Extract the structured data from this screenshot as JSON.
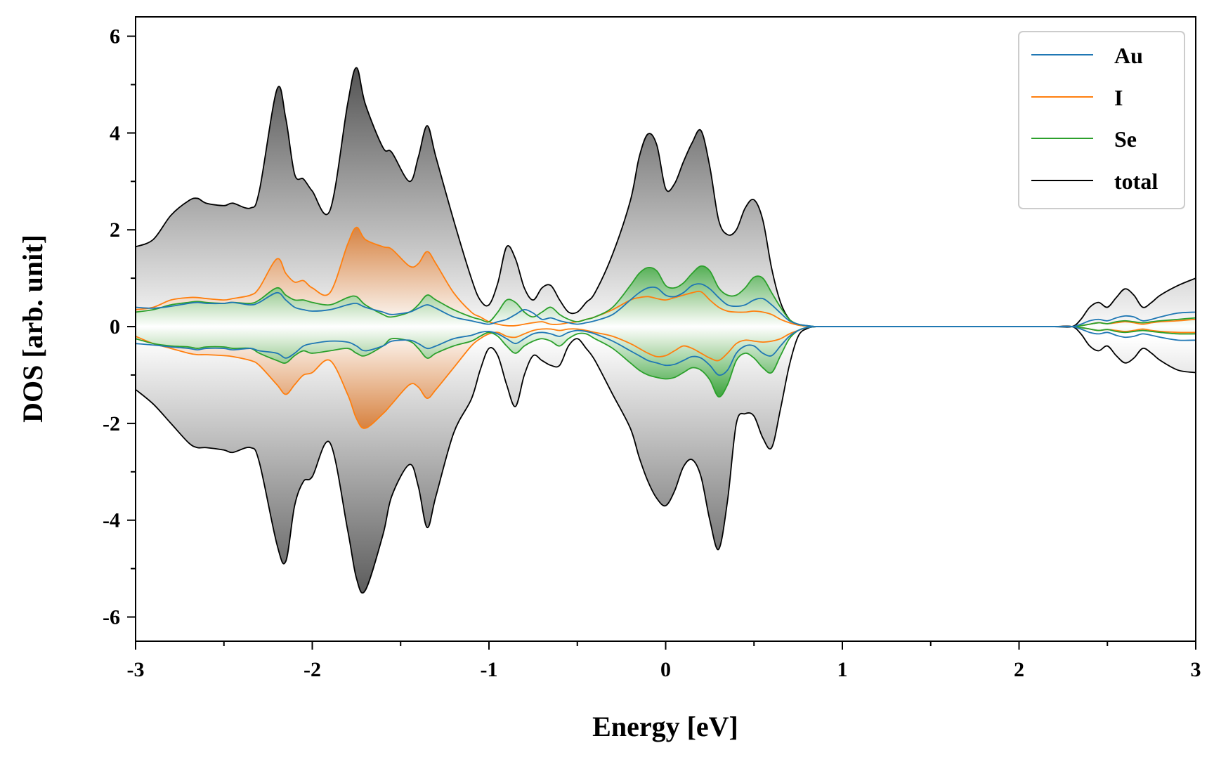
{
  "chart_data": {
    "type": "line",
    "title": "",
    "xlabel": "Energy [eV]",
    "ylabel": "DOS [arb. unit]",
    "xlim": [
      -3,
      3
    ],
    "ylim": [
      -6.5,
      6.4
    ],
    "x_ticks": [
      -3,
      -2,
      -1,
      0,
      1,
      2,
      3
    ],
    "x_tick_labels": [
      "-3",
      "-2",
      "-1",
      "0",
      "1",
      "2",
      "3"
    ],
    "y_ticks": [
      -6,
      -4,
      -2,
      0,
      2,
      4,
      6
    ],
    "y_tick_labels": [
      "-6",
      "-4",
      "-2",
      "0",
      "2",
      "4",
      "6"
    ],
    "legend_position": "top-right",
    "grid": false,
    "x": [
      -3.0,
      -2.9,
      -2.8,
      -2.7,
      -2.65,
      -2.6,
      -2.5,
      -2.45,
      -2.35,
      -2.3,
      -2.2,
      -2.15,
      -2.1,
      -2.05,
      -2.0,
      -1.9,
      -1.8,
      -1.75,
      -1.7,
      -1.6,
      -1.55,
      -1.45,
      -1.4,
      -1.35,
      -1.3,
      -1.2,
      -1.1,
      -1.05,
      -1.0,
      -0.95,
      -0.9,
      -0.85,
      -0.8,
      -0.75,
      -0.7,
      -0.65,
      -0.6,
      -0.55,
      -0.5,
      -0.45,
      -0.4,
      -0.3,
      -0.2,
      -0.15,
      -0.1,
      -0.05,
      0.0,
      0.05,
      0.1,
      0.15,
      0.2,
      0.25,
      0.3,
      0.35,
      0.4,
      0.45,
      0.5,
      0.55,
      0.6,
      0.65,
      0.7,
      0.75,
      0.8,
      0.85,
      0.9,
      1.0,
      1.5,
      2.0,
      2.2,
      2.3,
      2.35,
      2.4,
      2.45,
      2.5,
      2.55,
      2.6,
      2.65,
      2.7,
      2.75,
      2.8,
      2.9,
      3.0
    ],
    "series": [
      {
        "name": "Au",
        "color": "#1f77b4",
        "up": [
          0.4,
          0.38,
          0.42,
          0.48,
          0.5,
          0.48,
          0.48,
          0.5,
          0.45,
          0.5,
          0.7,
          0.55,
          0.4,
          0.35,
          0.32,
          0.35,
          0.45,
          0.48,
          0.4,
          0.3,
          0.25,
          0.3,
          0.38,
          0.45,
          0.38,
          0.2,
          0.12,
          0.08,
          0.05,
          0.1,
          0.15,
          0.25,
          0.35,
          0.28,
          0.15,
          0.18,
          0.12,
          0.08,
          0.05,
          0.08,
          0.12,
          0.25,
          0.55,
          0.7,
          0.8,
          0.8,
          0.65,
          0.62,
          0.7,
          0.85,
          0.88,
          0.78,
          0.6,
          0.45,
          0.42,
          0.45,
          0.55,
          0.58,
          0.45,
          0.28,
          0.12,
          0.05,
          0.02,
          0.0,
          0.0,
          0.0,
          0.0,
          0.0,
          0.0,
          0.0,
          0.05,
          0.12,
          0.15,
          0.12,
          0.18,
          0.22,
          0.2,
          0.12,
          0.15,
          0.2,
          0.28,
          0.3
        ],
        "down": [
          -0.35,
          -0.38,
          -0.42,
          -0.45,
          -0.48,
          -0.45,
          -0.45,
          -0.48,
          -0.45,
          -0.5,
          -0.55,
          -0.65,
          -0.55,
          -0.4,
          -0.35,
          -0.3,
          -0.32,
          -0.4,
          -0.5,
          -0.4,
          -0.3,
          -0.28,
          -0.35,
          -0.45,
          -0.4,
          -0.25,
          -0.18,
          -0.12,
          -0.1,
          -0.15,
          -0.25,
          -0.35,
          -0.25,
          -0.15,
          -0.12,
          -0.15,
          -0.2,
          -0.12,
          -0.08,
          -0.1,
          -0.15,
          -0.3,
          -0.5,
          -0.6,
          -0.7,
          -0.75,
          -0.8,
          -0.78,
          -0.7,
          -0.62,
          -0.65,
          -0.8,
          -1.0,
          -0.9,
          -0.55,
          -0.4,
          -0.4,
          -0.55,
          -0.6,
          -0.4,
          -0.2,
          -0.08,
          -0.02,
          0.0,
          0.0,
          0.0,
          0.0,
          0.0,
          0.0,
          0.0,
          -0.05,
          -0.12,
          -0.15,
          -0.12,
          -0.18,
          -0.22,
          -0.2,
          -0.15,
          -0.18,
          -0.22,
          -0.28,
          -0.28
        ]
      },
      {
        "name": "I",
        "color": "#ff7f0e",
        "up": [
          0.35,
          0.4,
          0.55,
          0.6,
          0.6,
          0.58,
          0.55,
          0.58,
          0.65,
          0.8,
          1.4,
          1.1,
          0.92,
          0.95,
          0.8,
          0.7,
          1.7,
          2.05,
          1.8,
          1.65,
          1.6,
          1.25,
          1.3,
          1.55,
          1.3,
          0.7,
          0.3,
          0.2,
          0.1,
          0.05,
          0.02,
          0.02,
          0.05,
          0.08,
          0.1,
          0.05,
          0.05,
          0.08,
          0.1,
          0.15,
          0.2,
          0.35,
          0.55,
          0.6,
          0.62,
          0.58,
          0.55,
          0.6,
          0.65,
          0.7,
          0.72,
          0.55,
          0.4,
          0.32,
          0.3,
          0.3,
          0.32,
          0.3,
          0.25,
          0.15,
          0.08,
          0.03,
          0.01,
          0.0,
          0.0,
          0.0,
          0.0,
          0.0,
          0.0,
          0.0,
          0.02,
          0.05,
          0.08,
          0.06,
          0.08,
          0.1,
          0.08,
          0.05,
          0.08,
          0.1,
          0.12,
          0.15
        ],
        "down": [
          -0.2,
          -0.35,
          -0.45,
          -0.55,
          -0.58,
          -0.58,
          -0.6,
          -0.62,
          -0.7,
          -0.8,
          -1.2,
          -1.4,
          -1.2,
          -1.0,
          -0.95,
          -0.7,
          -1.4,
          -1.9,
          -2.1,
          -1.8,
          -1.6,
          -1.2,
          -1.25,
          -1.48,
          -1.3,
          -0.85,
          -0.4,
          -0.25,
          -0.15,
          -0.12,
          -0.2,
          -0.22,
          -0.15,
          -0.08,
          -0.05,
          -0.05,
          -0.08,
          -0.05,
          -0.05,
          -0.08,
          -0.12,
          -0.2,
          -0.35,
          -0.45,
          -0.55,
          -0.62,
          -0.6,
          -0.5,
          -0.4,
          -0.45,
          -0.55,
          -0.65,
          -0.7,
          -0.55,
          -0.35,
          -0.28,
          -0.3,
          -0.32,
          -0.3,
          -0.25,
          -0.15,
          -0.08,
          -0.02,
          0.0,
          0.0,
          0.0,
          0.0,
          0.0,
          0.0,
          0.0,
          -0.02,
          -0.05,
          -0.08,
          -0.06,
          -0.08,
          -0.1,
          -0.08,
          -0.05,
          -0.08,
          -0.1,
          -0.12,
          -0.12
        ]
      },
      {
        "name": "Se",
        "color": "#2ca02c",
        "up": [
          0.3,
          0.35,
          0.45,
          0.5,
          0.52,
          0.5,
          0.48,
          0.5,
          0.48,
          0.55,
          0.8,
          0.65,
          0.55,
          0.55,
          0.5,
          0.45,
          0.6,
          0.62,
          0.45,
          0.25,
          0.2,
          0.3,
          0.45,
          0.65,
          0.55,
          0.35,
          0.2,
          0.15,
          0.1,
          0.3,
          0.55,
          0.5,
          0.3,
          0.2,
          0.3,
          0.4,
          0.25,
          0.15,
          0.1,
          0.15,
          0.2,
          0.4,
          0.85,
          1.1,
          1.22,
          1.15,
          0.85,
          0.8,
          0.9,
          1.1,
          1.25,
          1.15,
          0.8,
          0.65,
          0.65,
          0.8,
          1.02,
          1.0,
          0.7,
          0.4,
          0.15,
          0.05,
          0.02,
          0.0,
          0.0,
          0.0,
          0.0,
          0.0,
          0.0,
          0.0,
          0.02,
          0.05,
          0.08,
          0.06,
          0.1,
          0.12,
          0.1,
          0.08,
          0.1,
          0.12,
          0.15,
          0.18
        ],
        "down": [
          -0.25,
          -0.35,
          -0.4,
          -0.42,
          -0.45,
          -0.42,
          -0.42,
          -0.45,
          -0.45,
          -0.55,
          -0.7,
          -0.75,
          -0.6,
          -0.5,
          -0.55,
          -0.5,
          -0.45,
          -0.55,
          -0.6,
          -0.4,
          -0.25,
          -0.3,
          -0.45,
          -0.65,
          -0.55,
          -0.4,
          -0.3,
          -0.2,
          -0.12,
          -0.2,
          -0.4,
          -0.55,
          -0.4,
          -0.3,
          -0.25,
          -0.3,
          -0.4,
          -0.25,
          -0.15,
          -0.15,
          -0.25,
          -0.45,
          -0.75,
          -0.9,
          -1.0,
          -1.05,
          -1.08,
          -1.05,
          -0.95,
          -0.85,
          -0.9,
          -1.1,
          -1.45,
          -1.2,
          -0.7,
          -0.55,
          -0.65,
          -0.85,
          -0.95,
          -0.6,
          -0.25,
          -0.08,
          -0.02,
          0.0,
          0.0,
          0.0,
          0.0,
          0.0,
          0.0,
          0.0,
          -0.02,
          -0.05,
          -0.08,
          -0.06,
          -0.1,
          -0.12,
          -0.1,
          -0.08,
          -0.1,
          -0.12,
          -0.15,
          -0.15
        ]
      },
      {
        "name": "total",
        "color": "#000000",
        "up": [
          1.65,
          1.8,
          2.3,
          2.6,
          2.65,
          2.55,
          2.5,
          2.55,
          2.45,
          2.8,
          4.9,
          4.3,
          3.15,
          3.05,
          2.8,
          2.4,
          4.6,
          5.35,
          4.6,
          3.7,
          3.6,
          3.0,
          3.5,
          4.15,
          3.5,
          2.2,
          1.0,
          0.55,
          0.45,
          0.9,
          1.65,
          1.4,
          0.8,
          0.55,
          0.8,
          0.85,
          0.55,
          0.3,
          0.3,
          0.5,
          0.7,
          1.5,
          2.6,
          3.5,
          3.98,
          3.75,
          2.85,
          2.95,
          3.4,
          3.8,
          4.05,
          3.3,
          2.2,
          1.9,
          2.0,
          2.45,
          2.62,
          2.2,
          1.2,
          0.5,
          0.15,
          0.04,
          0.01,
          0.0,
          0.0,
          0.0,
          0.0,
          0.0,
          0.0,
          0.0,
          0.15,
          0.4,
          0.5,
          0.4,
          0.6,
          0.78,
          0.65,
          0.4,
          0.5,
          0.65,
          0.85,
          1.0
        ],
        "down": [
          -1.3,
          -1.6,
          -2.0,
          -2.4,
          -2.5,
          -2.5,
          -2.55,
          -2.6,
          -2.5,
          -2.8,
          -4.5,
          -4.85,
          -3.7,
          -3.2,
          -3.1,
          -2.4,
          -4.2,
          -5.2,
          -5.45,
          -4.3,
          -3.5,
          -2.85,
          -3.3,
          -4.15,
          -3.5,
          -2.2,
          -1.5,
          -0.9,
          -0.45,
          -0.6,
          -1.2,
          -1.65,
          -1.0,
          -0.6,
          -0.7,
          -0.8,
          -0.8,
          -0.4,
          -0.25,
          -0.45,
          -0.7,
          -1.4,
          -2.1,
          -2.7,
          -3.2,
          -3.55,
          -3.7,
          -3.4,
          -2.9,
          -2.75,
          -3.1,
          -4.0,
          -4.6,
          -3.6,
          -2.0,
          -1.8,
          -1.85,
          -2.3,
          -2.5,
          -1.7,
          -0.8,
          -0.2,
          -0.04,
          0.0,
          0.0,
          0.0,
          0.0,
          0.0,
          0.0,
          0.0,
          -0.15,
          -0.4,
          -0.5,
          -0.4,
          -0.6,
          -0.75,
          -0.65,
          -0.45,
          -0.55,
          -0.7,
          -0.9,
          -0.95
        ]
      }
    ]
  }
}
